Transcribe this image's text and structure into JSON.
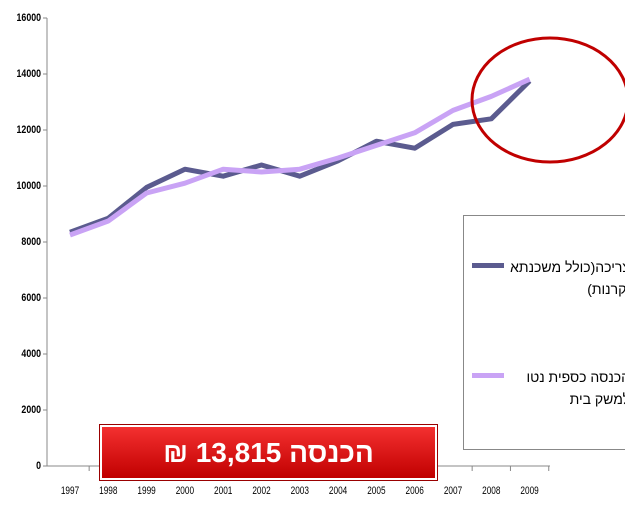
{
  "chart_data": {
    "type": "line",
    "categories": [
      "1997",
      "1998",
      "1999",
      "2000",
      "2001",
      "2002",
      "2003",
      "2004",
      "2005",
      "2006",
      "2007",
      "2008",
      "2009"
    ],
    "series": [
      {
        "name": "צריכה(כולל משכנתא וקרנות)",
        "color": "#5b5b8f",
        "values": [
          8350,
          8850,
          9950,
          10600,
          10350,
          10750,
          10350,
          10900,
          11600,
          11350,
          12200,
          12400,
          13750
        ]
      },
      {
        "name": "הכנסה כספית נטו למשק בית",
        "color": "#c9a3f5",
        "values": [
          8250,
          8750,
          9750,
          10100,
          10600,
          10500,
          10600,
          11000,
          11450,
          11900,
          12700,
          13200,
          13815
        ]
      }
    ],
    "ylim": [
      0,
      16000
    ],
    "yticks": [
      0,
      2000,
      4000,
      6000,
      8000,
      10000,
      12000,
      14000,
      16000
    ],
    "annotation": "הכנסה 13,815 ₪"
  }
}
